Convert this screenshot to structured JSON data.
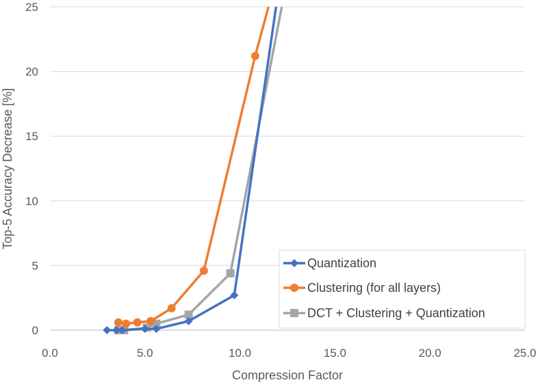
{
  "chart_data": {
    "type": "line",
    "xlabel": "Compression Factor",
    "ylabel": "Top-5 Accuracy Decrease [%]",
    "xlim": [
      0,
      25
    ],
    "ylim": [
      0,
      25
    ],
    "x_ticks": [
      0,
      5,
      10,
      15,
      20,
      25
    ],
    "x_tick_labels": [
      "0.0",
      "5.0",
      "10.0",
      "15.0",
      "20.0",
      "25.0"
    ],
    "y_ticks": [
      0,
      5,
      10,
      15,
      20,
      25
    ],
    "y_tick_labels": [
      "0",
      "5",
      "10",
      "15",
      "20",
      "25"
    ],
    "grid": "horizontal",
    "legend_position": "bottom-right",
    "series": [
      {
        "name": "Quantization",
        "color": "#4472C4",
        "marker": "diamond",
        "x": [
          3.0,
          3.5,
          3.8,
          5.0,
          5.6,
          7.3,
          9.7,
          11.9
        ],
        "y": [
          0.0,
          0.0,
          0.0,
          0.1,
          0.1,
          0.7,
          2.7,
          25.0
        ]
      },
      {
        "name": "Clustering (for all layers)",
        "color": "#ED7D31",
        "marker": "circle",
        "x": [
          3.6,
          4.0,
          4.6,
          5.3,
          6.4,
          8.1,
          10.8,
          11.5
        ],
        "y": [
          0.6,
          0.5,
          0.6,
          0.7,
          1.7,
          4.6,
          21.2,
          25.0
        ]
      },
      {
        "name": "DCT + Clustering + Quantization",
        "color": "#A5A5A5",
        "marker": "square",
        "x": [
          3.6,
          3.9,
          5.1,
          5.6,
          7.3,
          9.5,
          12.2
        ],
        "y": [
          0.0,
          0.0,
          0.2,
          0.5,
          1.2,
          4.4,
          25.0
        ]
      }
    ]
  }
}
